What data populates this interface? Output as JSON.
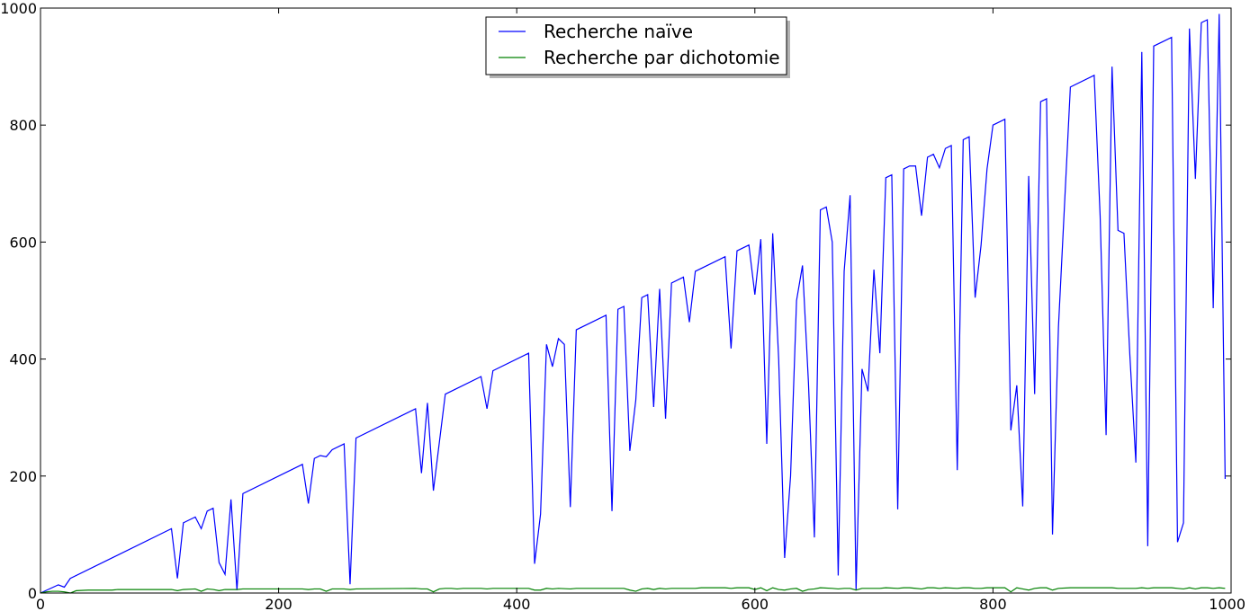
{
  "chart_data": {
    "type": "line",
    "title": "",
    "xlabel": "",
    "ylabel": "",
    "xlim": [
      0,
      1000
    ],
    "ylim": [
      0,
      1000
    ],
    "x_ticks": [
      0,
      200,
      400,
      600,
      800,
      1000
    ],
    "y_ticks": [
      0,
      200,
      400,
      600,
      800,
      1000
    ],
    "x_tick_labels": [
      "0",
      "200",
      "400",
      "600",
      "800",
      "1000"
    ],
    "y_tick_labels": [
      "0",
      "200",
      "400",
      "600",
      "800",
      "1000"
    ],
    "grid": false,
    "legend_position": "top-center",
    "series": [
      {
        "name": "Recherche naïve",
        "color": "#0000ff",
        "points": [
          [
            0,
            0
          ],
          [
            15,
            14
          ],
          [
            20,
            10
          ],
          [
            25,
            25
          ],
          [
            110,
            110
          ],
          [
            115,
            25
          ],
          [
            120,
            120
          ],
          [
            130,
            130
          ],
          [
            135,
            110
          ],
          [
            140,
            140
          ],
          [
            145,
            145
          ],
          [
            150,
            52
          ],
          [
            155,
            32
          ],
          [
            160,
            160
          ],
          [
            165,
            5
          ],
          [
            170,
            170
          ],
          [
            220,
            220
          ],
          [
            225,
            153
          ],
          [
            230,
            230
          ],
          [
            235,
            235
          ],
          [
            240,
            233
          ],
          [
            245,
            245
          ],
          [
            255,
            255
          ],
          [
            260,
            15
          ],
          [
            265,
            265
          ],
          [
            315,
            315
          ],
          [
            320,
            205
          ],
          [
            325,
            325
          ],
          [
            330,
            175
          ],
          [
            340,
            340
          ],
          [
            370,
            370
          ],
          [
            375,
            315
          ],
          [
            380,
            380
          ],
          [
            410,
            410
          ],
          [
            415,
            50
          ],
          [
            420,
            135
          ],
          [
            425,
            425
          ],
          [
            430,
            387
          ],
          [
            435,
            435
          ],
          [
            440,
            425
          ],
          [
            445,
            147
          ],
          [
            450,
            450
          ],
          [
            475,
            475
          ],
          [
            480,
            140
          ],
          [
            485,
            485
          ],
          [
            490,
            490
          ],
          [
            495,
            243
          ],
          [
            500,
            330
          ],
          [
            505,
            505
          ],
          [
            510,
            510
          ],
          [
            515,
            318
          ],
          [
            520,
            520
          ],
          [
            525,
            298
          ],
          [
            530,
            530
          ],
          [
            540,
            540
          ],
          [
            545,
            463
          ],
          [
            550,
            550
          ],
          [
            575,
            575
          ],
          [
            580,
            418
          ],
          [
            585,
            585
          ],
          [
            595,
            595
          ],
          [
            600,
            510
          ],
          [
            605,
            605
          ],
          [
            610,
            255
          ],
          [
            615,
            615
          ],
          [
            620,
            400
          ],
          [
            625,
            60
          ],
          [
            630,
            200
          ],
          [
            635,
            500
          ],
          [
            640,
            560
          ],
          [
            645,
            360
          ],
          [
            650,
            95
          ],
          [
            655,
            655
          ],
          [
            660,
            660
          ],
          [
            665,
            600
          ],
          [
            670,
            30
          ],
          [
            675,
            550
          ],
          [
            680,
            680
          ],
          [
            685,
            5
          ],
          [
            690,
            383
          ],
          [
            695,
            345
          ],
          [
            700,
            553
          ],
          [
            705,
            410
          ],
          [
            710,
            710
          ],
          [
            715,
            715
          ],
          [
            720,
            143
          ],
          [
            725,
            725
          ],
          [
            730,
            730
          ],
          [
            735,
            730
          ],
          [
            740,
            645
          ],
          [
            745,
            745
          ],
          [
            750,
            750
          ],
          [
            755,
            727
          ],
          [
            760,
            760
          ],
          [
            765,
            765
          ],
          [
            770,
            210
          ],
          [
            775,
            775
          ],
          [
            780,
            780
          ],
          [
            785,
            505
          ],
          [
            790,
            595
          ],
          [
            795,
            725
          ],
          [
            800,
            800
          ],
          [
            810,
            810
          ],
          [
            815,
            278
          ],
          [
            820,
            355
          ],
          [
            825,
            148
          ],
          [
            830,
            713
          ],
          [
            835,
            340
          ],
          [
            840,
            840
          ],
          [
            845,
            845
          ],
          [
            850,
            100
          ],
          [
            855,
            455
          ],
          [
            865,
            865
          ],
          [
            885,
            885
          ],
          [
            890,
            645
          ],
          [
            895,
            270
          ],
          [
            900,
            900
          ],
          [
            905,
            620
          ],
          [
            910,
            615
          ],
          [
            915,
            405
          ],
          [
            920,
            223
          ],
          [
            925,
            925
          ],
          [
            930,
            80
          ],
          [
            935,
            935
          ],
          [
            950,
            950
          ],
          [
            955,
            87
          ],
          [
            960,
            120
          ],
          [
            965,
            965
          ],
          [
            970,
            708
          ],
          [
            975,
            975
          ],
          [
            980,
            980
          ],
          [
            985,
            487
          ],
          [
            990,
            990
          ],
          [
            995,
            195
          ]
        ]
      },
      {
        "name": "Recherche par dichotomie",
        "color": "#008000",
        "points": [
          [
            0,
            0
          ],
          [
            5,
            2
          ],
          [
            10,
            3
          ],
          [
            15,
            3
          ],
          [
            20,
            2
          ],
          [
            25,
            0
          ],
          [
            30,
            4
          ],
          [
            40,
            5
          ],
          [
            60,
            5
          ],
          [
            65,
            6
          ],
          [
            110,
            6
          ],
          [
            115,
            4
          ],
          [
            120,
            6
          ],
          [
            130,
            7
          ],
          [
            135,
            3
          ],
          [
            140,
            7
          ],
          [
            145,
            6
          ],
          [
            150,
            4
          ],
          [
            155,
            6
          ],
          [
            160,
            6
          ],
          [
            165,
            6
          ],
          [
            170,
            7
          ],
          [
            220,
            7
          ],
          [
            225,
            6
          ],
          [
            230,
            7
          ],
          [
            235,
            7
          ],
          [
            240,
            3
          ],
          [
            245,
            7
          ],
          [
            255,
            7
          ],
          [
            260,
            6
          ],
          [
            265,
            7
          ],
          [
            315,
            8
          ],
          [
            320,
            7
          ],
          [
            325,
            7
          ],
          [
            330,
            2
          ],
          [
            335,
            7
          ],
          [
            340,
            8
          ],
          [
            345,
            8
          ],
          [
            350,
            7
          ],
          [
            355,
            8
          ],
          [
            370,
            8
          ],
          [
            375,
            7
          ],
          [
            380,
            8
          ],
          [
            410,
            8
          ],
          [
            415,
            5
          ],
          [
            420,
            5
          ],
          [
            425,
            8
          ],
          [
            430,
            7
          ],
          [
            435,
            8
          ],
          [
            445,
            7
          ],
          [
            450,
            8
          ],
          [
            490,
            8
          ],
          [
            495,
            5
          ],
          [
            500,
            3
          ],
          [
            505,
            7
          ],
          [
            510,
            8
          ],
          [
            515,
            6
          ],
          [
            520,
            8
          ],
          [
            525,
            7
          ],
          [
            530,
            8
          ],
          [
            550,
            8
          ],
          [
            555,
            9
          ],
          [
            575,
            9
          ],
          [
            580,
            8
          ],
          [
            585,
            9
          ],
          [
            595,
            9
          ],
          [
            600,
            6
          ],
          [
            605,
            9
          ],
          [
            610,
            4
          ],
          [
            615,
            9
          ],
          [
            620,
            6
          ],
          [
            625,
            5
          ],
          [
            630,
            7
          ],
          [
            635,
            8
          ],
          [
            640,
            3
          ],
          [
            645,
            6
          ],
          [
            650,
            7
          ],
          [
            655,
            9
          ],
          [
            665,
            8
          ],
          [
            670,
            7
          ],
          [
            675,
            8
          ],
          [
            680,
            8
          ],
          [
            685,
            5
          ],
          [
            690,
            8
          ],
          [
            695,
            8
          ],
          [
            700,
            8
          ],
          [
            705,
            8
          ],
          [
            710,
            9
          ],
          [
            720,
            8
          ],
          [
            725,
            9
          ],
          [
            730,
            9
          ],
          [
            740,
            7
          ],
          [
            745,
            9
          ],
          [
            750,
            9
          ],
          [
            755,
            8
          ],
          [
            760,
            9
          ],
          [
            770,
            8
          ],
          [
            775,
            9
          ],
          [
            780,
            9
          ],
          [
            785,
            8
          ],
          [
            790,
            8
          ],
          [
            795,
            9
          ],
          [
            800,
            9
          ],
          [
            810,
            9
          ],
          [
            815,
            2
          ],
          [
            820,
            9
          ],
          [
            825,
            7
          ],
          [
            830,
            5
          ],
          [
            835,
            8
          ],
          [
            840,
            9
          ],
          [
            845,
            9
          ],
          [
            850,
            5
          ],
          [
            855,
            8
          ],
          [
            865,
            9
          ],
          [
            885,
            9
          ],
          [
            890,
            9
          ],
          [
            895,
            9
          ],
          [
            900,
            9
          ],
          [
            905,
            8
          ],
          [
            920,
            8
          ],
          [
            925,
            9
          ],
          [
            930,
            8
          ],
          [
            935,
            9
          ],
          [
            950,
            9
          ],
          [
            955,
            8
          ],
          [
            960,
            7
          ],
          [
            965,
            9
          ],
          [
            970,
            7
          ],
          [
            975,
            9
          ],
          [
            980,
            9
          ],
          [
            985,
            8
          ],
          [
            990,
            9
          ],
          [
            995,
            8
          ]
        ]
      }
    ]
  }
}
